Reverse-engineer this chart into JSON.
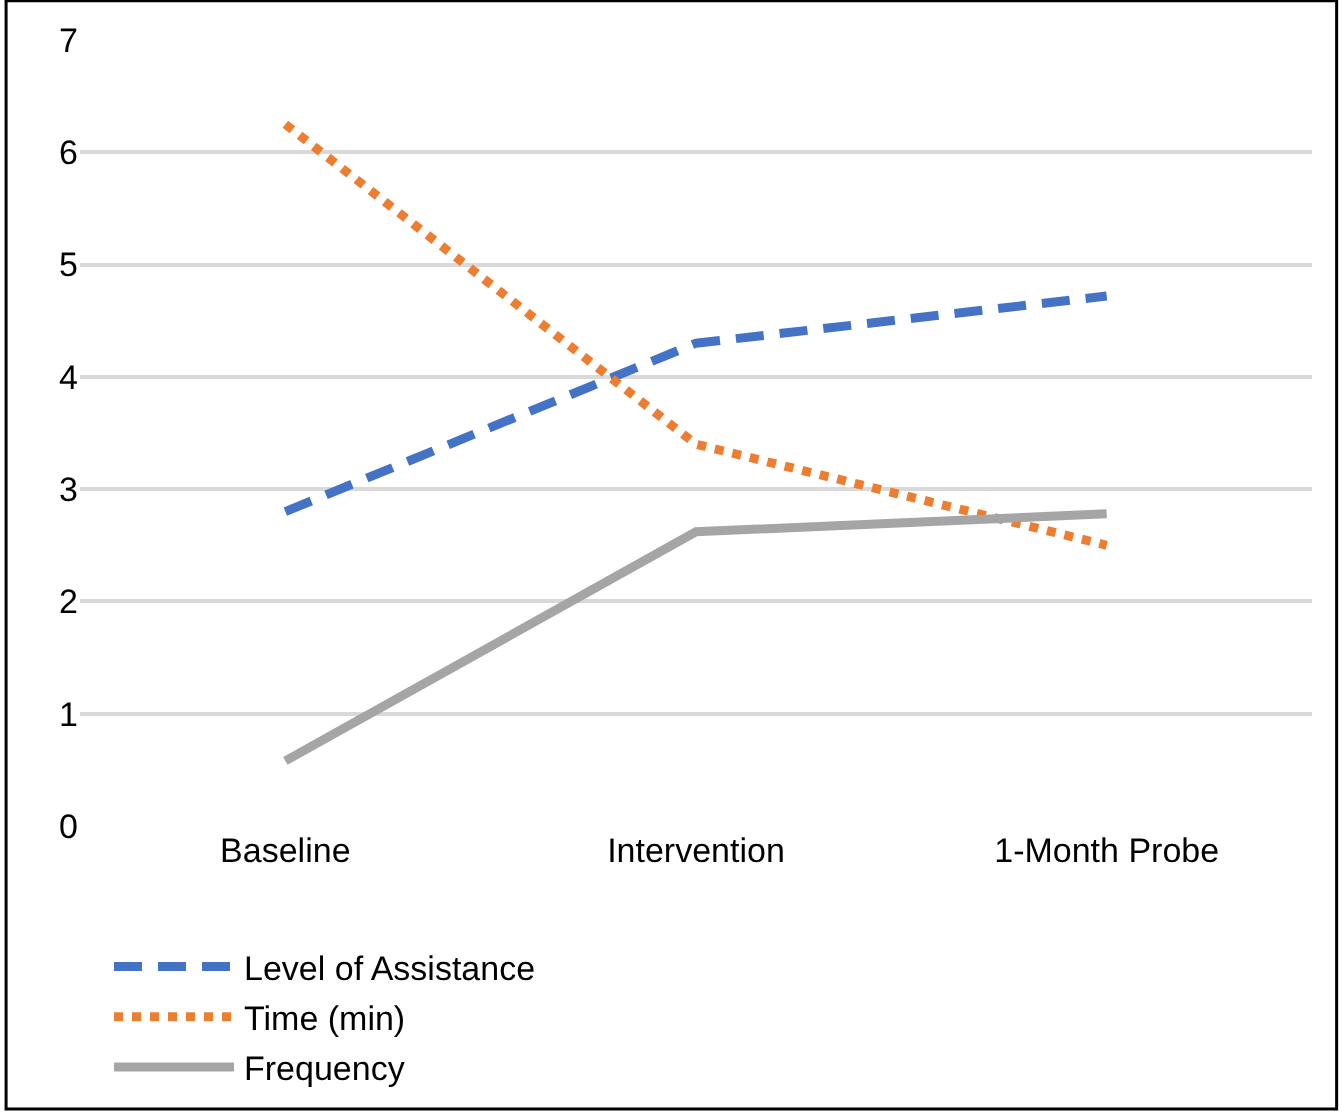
{
  "chart_data": {
    "type": "line",
    "categories": [
      "Baseline",
      "Intervention",
      "1-Month Probe"
    ],
    "series": [
      {
        "name": "Level of Assistance",
        "color": "#4472c4",
        "values": [
          2.8,
          4.3,
          4.72
        ],
        "line_style": "dashed"
      },
      {
        "name": "Time (min)",
        "color": "#ed7d31",
        "values": [
          6.25,
          3.4,
          2.5
        ],
        "line_style": "dotted"
      },
      {
        "name": "Frequency",
        "color": "#a5a5a5",
        "values": [
          0.58,
          2.62,
          2.78
        ],
        "line_style": "solid"
      }
    ],
    "ylim": [
      0,
      7
    ],
    "yticks": [
      0,
      1,
      2,
      3,
      4,
      5,
      6,
      7
    ],
    "grid": "y",
    "legend": "bottom",
    "marker": "none"
  }
}
